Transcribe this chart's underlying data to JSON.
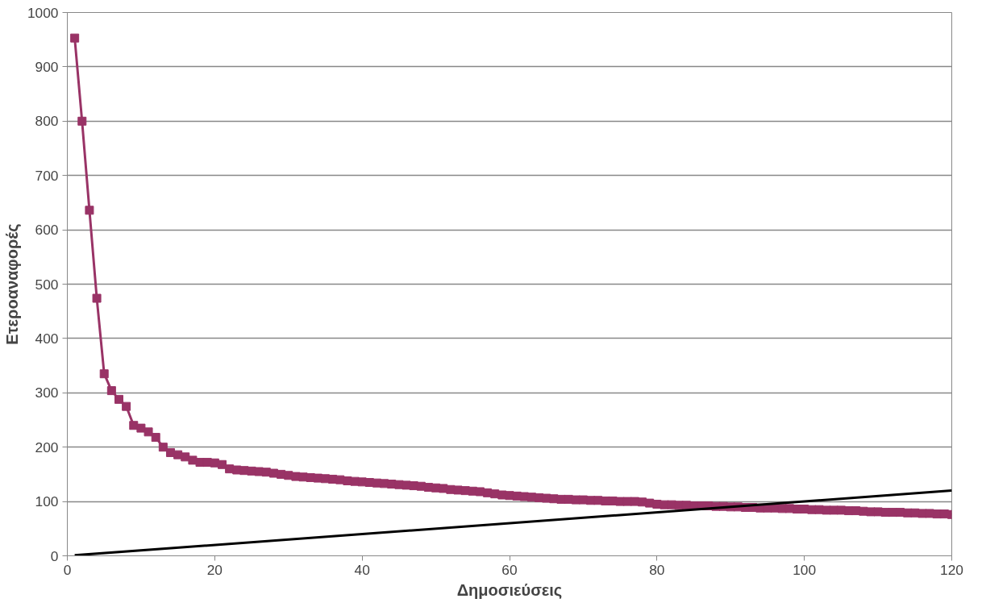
{
  "chart_data": {
    "type": "line",
    "xlabel": "Δημοσιεύσεις",
    "ylabel": "Ετεροαναφορές",
    "xlim": [
      0,
      120
    ],
    "xticks": [
      0,
      20,
      40,
      60,
      80,
      100,
      120
    ],
    "ylim": [
      0,
      1000
    ],
    "yticks": [
      0,
      100,
      200,
      300,
      400,
      500,
      600,
      700,
      800,
      900,
      1000
    ],
    "grid": "y",
    "series": [
      {
        "color": "#993366",
        "marker": "square",
        "x": [
          1,
          2,
          3,
          4,
          5,
          6,
          7,
          8,
          9,
          10,
          11,
          12,
          13,
          14,
          15,
          16,
          17,
          18,
          19,
          20,
          21,
          22,
          23,
          24,
          25,
          26,
          27,
          28,
          29,
          30,
          31,
          32,
          33,
          34,
          35,
          36,
          37,
          38,
          39,
          40,
          41,
          42,
          43,
          44,
          45,
          46,
          47,
          48,
          49,
          50,
          51,
          52,
          53,
          54,
          55,
          56,
          57,
          58,
          59,
          60,
          61,
          62,
          63,
          64,
          65,
          66,
          67,
          68,
          69,
          70,
          71,
          72,
          73,
          74,
          75,
          76,
          77,
          78,
          79,
          80,
          81,
          82,
          83,
          84,
          85,
          86,
          87,
          88,
          89,
          90,
          91,
          92,
          93,
          94,
          95,
          96,
          97,
          98,
          99,
          100,
          101,
          102,
          103,
          104,
          105,
          106,
          107,
          108,
          109,
          110,
          111,
          112,
          113,
          114,
          115,
          116,
          117,
          118,
          119,
          120
        ],
        "values": [
          953,
          800,
          636,
          474,
          335,
          304,
          288,
          275,
          240,
          235,
          228,
          218,
          200,
          190,
          186,
          182,
          176,
          172,
          172,
          171,
          168,
          160,
          158,
          157,
          156,
          155,
          154,
          152,
          150,
          148,
          146,
          145,
          144,
          143,
          142,
          141,
          140,
          138,
          137,
          136,
          135,
          134,
          133,
          132,
          131,
          130,
          129,
          128,
          126,
          125,
          124,
          122,
          121,
          120,
          119,
          118,
          116,
          114,
          112,
          111,
          110,
          109,
          108,
          107,
          106,
          105,
          104,
          104,
          103,
          103,
          102,
          102,
          101,
          101,
          100,
          100,
          100,
          99,
          97,
          95,
          94,
          94,
          93,
          93,
          92,
          92,
          92,
          91,
          91,
          90,
          90,
          89,
          89,
          88,
          88,
          88,
          87,
          87,
          86,
          86,
          85,
          85,
          84,
          84,
          84,
          83,
          83,
          82,
          81,
          81,
          80,
          80,
          80,
          79,
          79,
          78,
          78,
          77,
          77,
          76
        ]
      },
      {
        "color": "#000000",
        "marker": "none",
        "x": [
          1,
          120
        ],
        "values": [
          1,
          120
        ]
      }
    ]
  }
}
